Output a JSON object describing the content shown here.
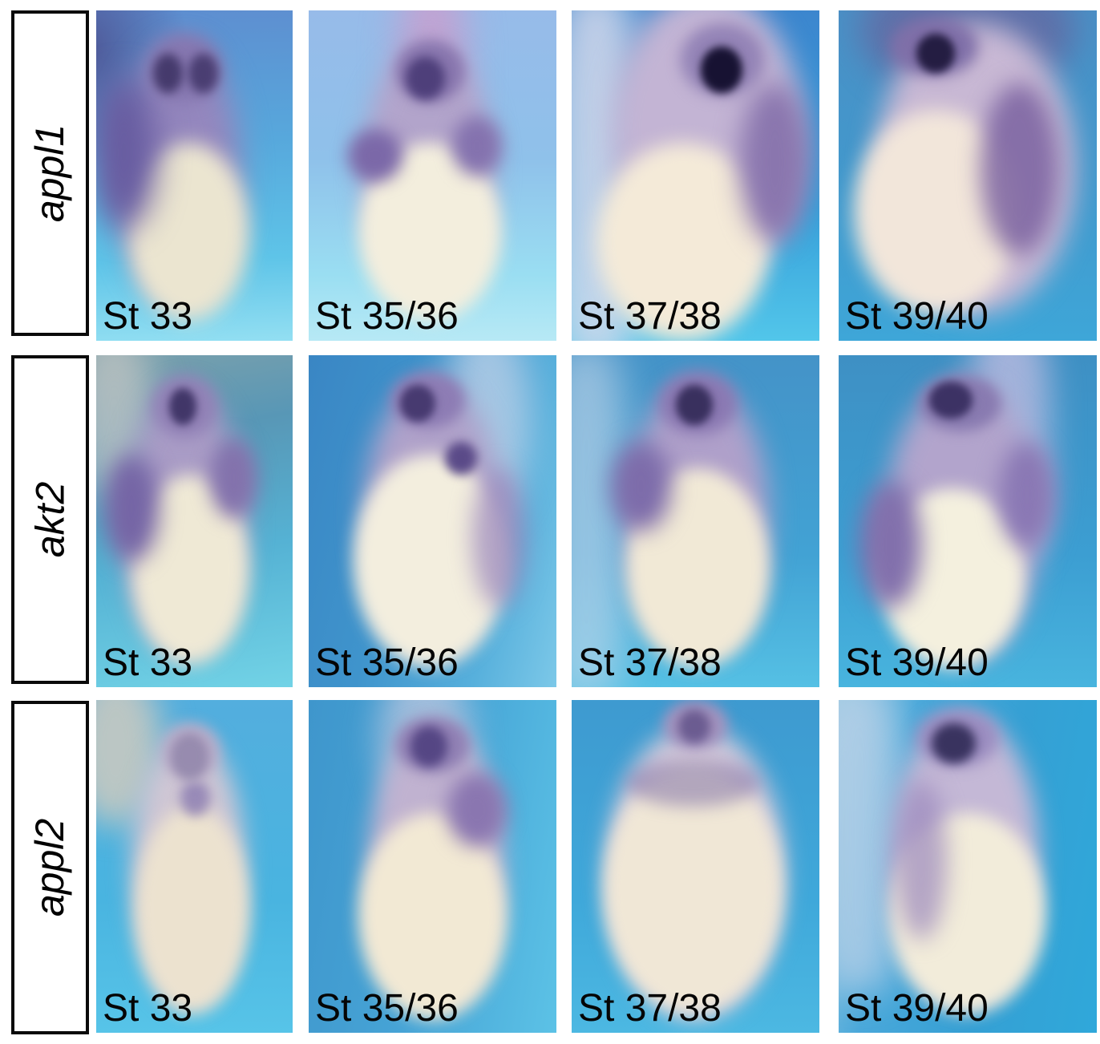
{
  "figure": {
    "rows": [
      {
        "gene": "appl1",
        "stages": [
          "St 33",
          "St 35/36",
          "St 37/38",
          "St 39/40"
        ]
      },
      {
        "gene": "akt2",
        "stages": [
          "St 33",
          "St 35/36",
          "St 37/38",
          "St 39/40"
        ]
      },
      {
        "gene": "appl2",
        "stages": [
          "St 33",
          "St 35/36",
          "St 37/38",
          "St 39/40"
        ]
      }
    ]
  },
  "palette": {
    "figure_background": "#ffffff",
    "panel_background_blue": "#49aedd",
    "stain_purple": "#7a68a8",
    "eye_pigment_dark": "#2a2248",
    "yolk_cream": "#f0e8d6",
    "label_text": "#000000",
    "gene_box_border": "#0a0a0a"
  }
}
